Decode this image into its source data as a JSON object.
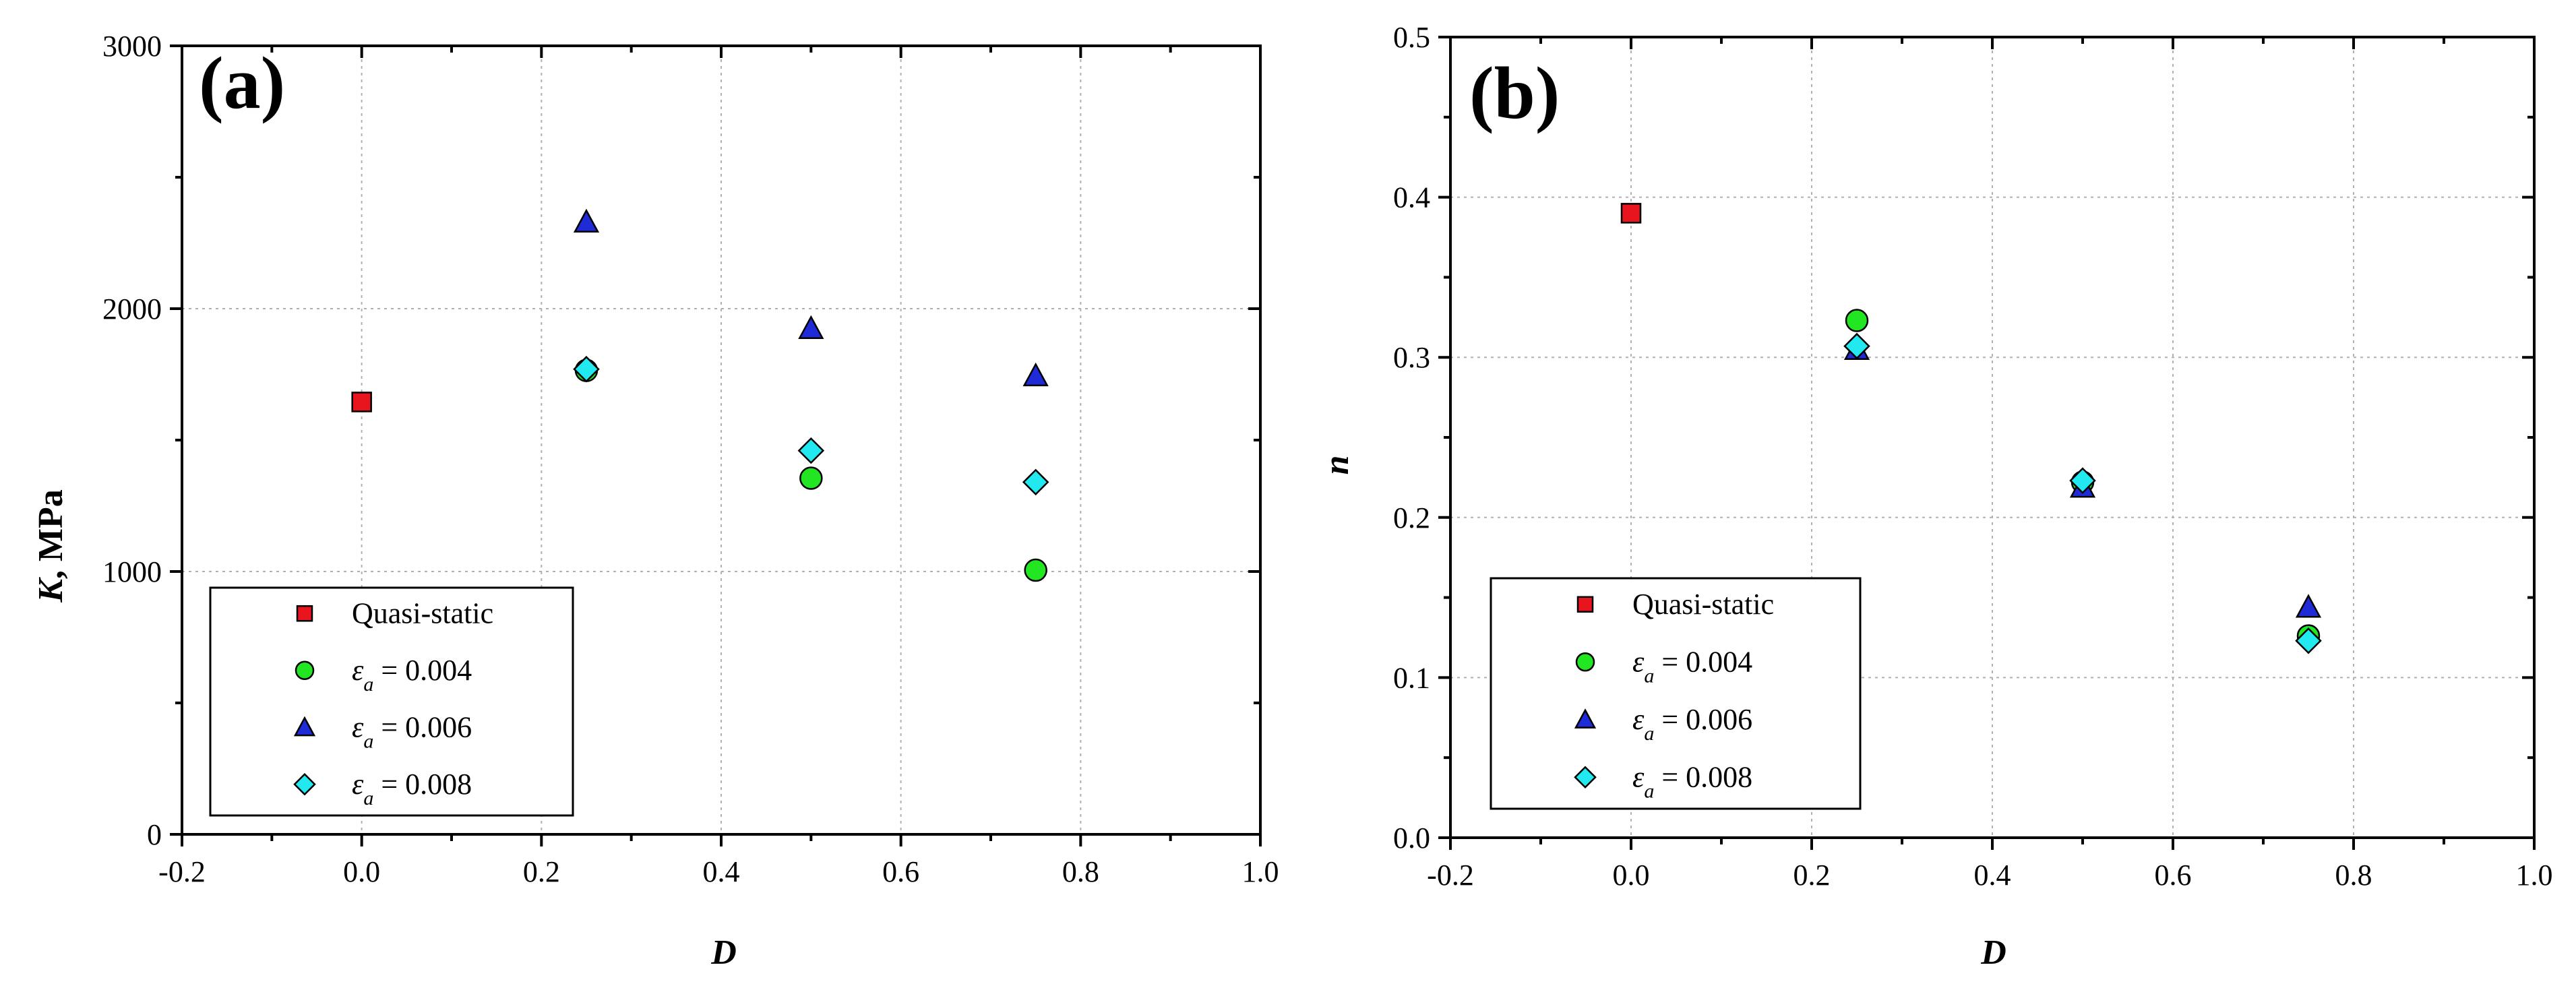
{
  "colors": {
    "quasi": "#e8141e",
    "e004": "#22e622",
    "e006": "#1f2bd6",
    "e008": "#22e8f0"
  },
  "legend": {
    "items": [
      {
        "key": "quasi",
        "label": "Quasi-static",
        "marker": "square"
      },
      {
        "key": "e004",
        "symbol": "ε",
        "sub": "a",
        "label": " = 0.004",
        "marker": "circle"
      },
      {
        "key": "e006",
        "symbol": "ε",
        "sub": "a",
        "label": " = 0.006",
        "marker": "triangle"
      },
      {
        "key": "e008",
        "symbol": "ε",
        "sub": "a",
        "label": " = 0.008",
        "marker": "diamond"
      }
    ]
  },
  "chart_data": [
    {
      "type": "scatter",
      "panel_label": "(a)",
      "xlabel": "D",
      "ylabel_main": "K",
      "ylabel_unit": ", MPa",
      "xlim": [
        -0.2,
        1.0
      ],
      "ylim": [
        0,
        3000
      ],
      "xticks": [
        -0.2,
        0.0,
        0.2,
        0.4,
        0.6,
        0.8,
        1.0
      ],
      "xtick_labels": [
        "-0.2",
        "0.0",
        "0.2",
        "0.4",
        "0.6",
        "0.8",
        "1.0"
      ],
      "yticks": [
        0,
        1000,
        2000,
        3000
      ],
      "ytick_labels": [
        "0",
        "1000",
        "2000",
        "3000"
      ],
      "legend_position": "bottom-left",
      "series": [
        {
          "key": "quasi",
          "name": "Quasi-static",
          "x": [
            0.0
          ],
          "y": [
            1645
          ]
        },
        {
          "key": "e004",
          "name": "εa = 0.004",
          "x": [
            0.25,
            0.5,
            0.75
          ],
          "y": [
            1765,
            1355,
            1005
          ]
        },
        {
          "key": "e006",
          "name": "εa = 0.006",
          "x": [
            0.25,
            0.5,
            0.75
          ],
          "y": [
            2330,
            1925,
            1745
          ]
        },
        {
          "key": "e008",
          "name": "εa = 0.008",
          "x": [
            0.25,
            0.5,
            0.75
          ],
          "y": [
            1770,
            1460,
            1340
          ]
        }
      ]
    },
    {
      "type": "scatter",
      "panel_label": "(b)",
      "xlabel": "D",
      "ylabel_main": "n",
      "ylabel_unit": "",
      "xlim": [
        -0.2,
        1.0
      ],
      "ylim": [
        0,
        0.5
      ],
      "xticks": [
        -0.2,
        0.0,
        0.2,
        0.4,
        0.6,
        0.8,
        1.0
      ],
      "xtick_labels": [
        "-0.2",
        "0.0",
        "0.2",
        "0.4",
        "0.6",
        "0.8",
        "1.0"
      ],
      "yticks": [
        0,
        0.1,
        0.2,
        0.3,
        0.4,
        0.5
      ],
      "ytick_labels": [
        "0.0",
        "0.1",
        "0.2",
        "0.3",
        "0.4",
        "0.5"
      ],
      "legend_position": "bottom-left",
      "series": [
        {
          "key": "quasi",
          "name": "Quasi-static",
          "x": [
            0.0
          ],
          "y": [
            0.39
          ]
        },
        {
          "key": "e004",
          "name": "εa = 0.004",
          "x": [
            0.25,
            0.5,
            0.75
          ],
          "y": [
            0.323,
            0.222,
            0.126
          ]
        },
        {
          "key": "e006",
          "name": "εa = 0.006",
          "x": [
            0.25,
            0.5,
            0.75
          ],
          "y": [
            0.305,
            0.219,
            0.144
          ]
        },
        {
          "key": "e008",
          "name": "εa = 0.008",
          "x": [
            0.25,
            0.5,
            0.75
          ],
          "y": [
            0.307,
            0.223,
            0.123
          ]
        }
      ]
    }
  ]
}
